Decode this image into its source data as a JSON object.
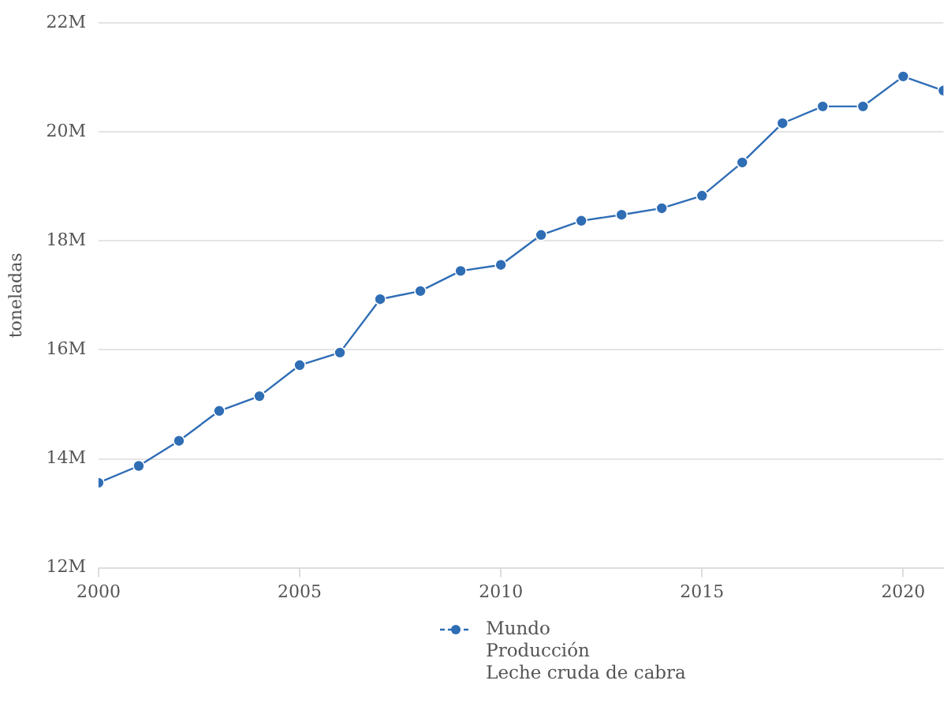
{
  "chart_data": {
    "type": "line",
    "ylabel": "toneladas",
    "x": [
      2000,
      2001,
      2002,
      2003,
      2004,
      2005,
      2006,
      2007,
      2008,
      2009,
      2010,
      2011,
      2012,
      2013,
      2014,
      2015,
      2016,
      2017,
      2018,
      2019,
      2020,
      2021
    ],
    "series": [
      {
        "name": "Mundo\nProducción\nLeche cruda de cabra",
        "color": "#2f6db5",
        "values": [
          13560000,
          13870000,
          14330000,
          14880000,
          15150000,
          15720000,
          15950000,
          16930000,
          17080000,
          17450000,
          17560000,
          18110000,
          18370000,
          18480000,
          18600000,
          18830000,
          19440000,
          20160000,
          20470000,
          20470000,
          21020000,
          20760000
        ]
      }
    ],
    "xlim": [
      2000,
      2021
    ],
    "xticks": [
      2000,
      2005,
      2010,
      2015,
      2020
    ],
    "ylim": [
      12000000,
      22000000
    ],
    "yticks": [
      {
        "value": 12000000,
        "label": "12M"
      },
      {
        "value": 14000000,
        "label": "14M"
      },
      {
        "value": 16000000,
        "label": "16M"
      },
      {
        "value": 18000000,
        "label": "18M"
      },
      {
        "value": 20000000,
        "label": "20M"
      },
      {
        "value": 22000000,
        "label": "22M"
      }
    ],
    "grid": "y",
    "legend": "bottom",
    "marker": "circle",
    "line_style": "solid"
  }
}
